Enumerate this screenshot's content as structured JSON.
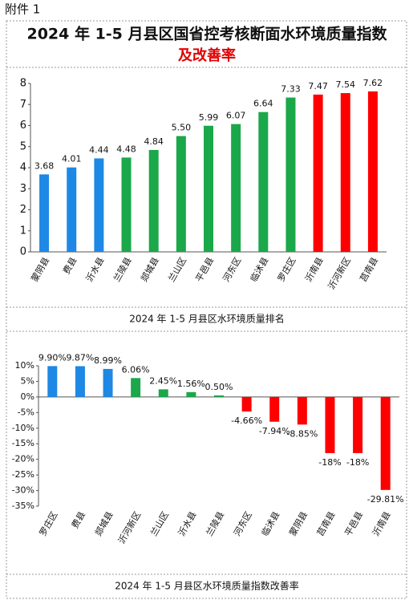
{
  "attachment": "附件 1",
  "title": "2024 年 1-5 月县区国省控考核断面水环境质量指数",
  "subtitle": "及改善率",
  "chart_data": [
    {
      "type": "bar",
      "title": "2024 年 1-5 月县区水环境质量排名",
      "categories": [
        "蒙阴县",
        "费县",
        "沂水县",
        "兰陵县",
        "郯城县",
        "兰山区",
        "平邑县",
        "河东区",
        "临沭县",
        "罗庄区",
        "沂南县",
        "沂河新区",
        "莒南县"
      ],
      "values": [
        3.68,
        4.01,
        4.44,
        4.48,
        4.84,
        5.5,
        5.99,
        6.07,
        6.64,
        7.33,
        7.47,
        7.54,
        7.62
      ],
      "value_labels": [
        "3.68",
        "4.01",
        "4.44",
        "4.48",
        "4.84",
        "5.50",
        "5.99",
        "6.07",
        "6.64",
        "7.33",
        "7.47",
        "7.54",
        "7.62"
      ],
      "colors": [
        "#1e88e5",
        "#1e88e5",
        "#1e88e5",
        "#1aa84a",
        "#1aa84a",
        "#1aa84a",
        "#1aa84a",
        "#1aa84a",
        "#1aa84a",
        "#1aa84a",
        "#ff0000",
        "#ff0000",
        "#ff0000"
      ],
      "ylim": [
        0,
        8
      ],
      "yticks": [
        0,
        1,
        2,
        3,
        4,
        5,
        6,
        7,
        8
      ]
    },
    {
      "type": "bar",
      "title": "2024 年 1-5 月县区水环境质量指数改善率",
      "categories": [
        "罗庄区",
        "费县",
        "郯城县",
        "沂河新区",
        "兰山区",
        "沂水县",
        "兰陵县",
        "河东区",
        "临沭县",
        "蒙阴县",
        "莒南县",
        "平邑县",
        "沂南县"
      ],
      "values": [
        9.9,
        9.87,
        8.99,
        6.06,
        2.45,
        1.56,
        0.5,
        -4.66,
        -7.94,
        -8.85,
        -18,
        -18,
        -29.81
      ],
      "value_labels": [
        "9.90%",
        "9.87%",
        "8.99%",
        "6.06%",
        "2.45%",
        "1.56%",
        "0.50%",
        "-4.66%",
        "-7.94%",
        "-8.85%",
        "-18%",
        "-18%",
        "-29.81%"
      ],
      "colors": [
        "#1e88e5",
        "#1e88e5",
        "#1e88e5",
        "#1aa84a",
        "#1aa84a",
        "#1aa84a",
        "#1aa84a",
        "#ff0000",
        "#ff0000",
        "#ff0000",
        "#ff0000",
        "#ff0000",
        "#ff0000"
      ],
      "ylim": [
        -35,
        10
      ],
      "yticks": [
        {
          "value": 10,
          "label": "10%"
        },
        {
          "value": 5,
          "label": "5%"
        },
        {
          "value": 0,
          "label": "0%"
        },
        {
          "value": -5,
          "label": "-5%"
        },
        {
          "value": -10,
          "label": "-10%"
        },
        {
          "value": -15,
          "label": "-15%"
        },
        {
          "value": -20,
          "label": "-20%"
        },
        {
          "value": -25,
          "label": "-25%"
        },
        {
          "value": -30,
          "label": "-30%"
        },
        {
          "value": -35,
          "label": "-35%"
        }
      ]
    }
  ]
}
